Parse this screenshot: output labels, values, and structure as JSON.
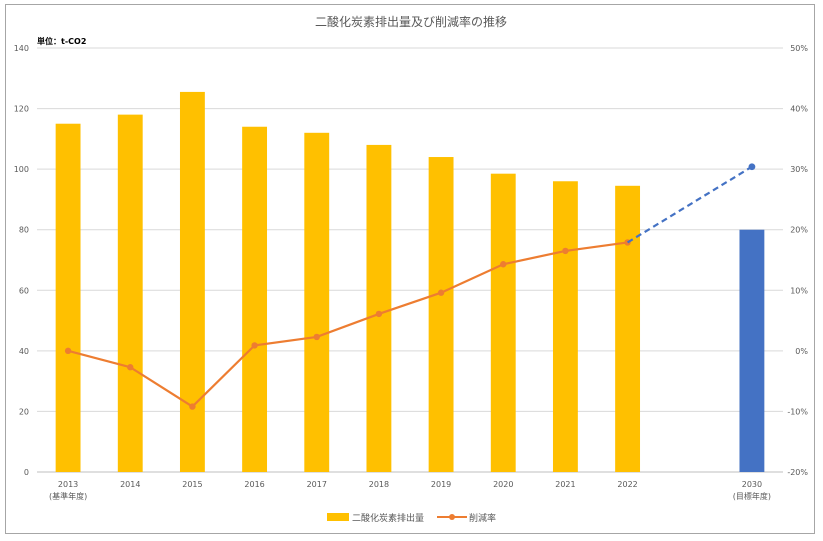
{
  "chart_data": {
    "type": "bar",
    "title": "二酸化炭素排出量及び削減率の推移",
    "unit_label": "単位：t-CO2",
    "categories": [
      "2013",
      "2014",
      "2015",
      "2016",
      "2017",
      "2018",
      "2019",
      "2020",
      "2021",
      "2022",
      "2030"
    ],
    "category_sublabels": {
      "2013": "(基準年度)",
      "2030": "(目標年度)"
    },
    "ylim": [
      0,
      140
    ],
    "yticks": [
      0,
      20,
      40,
      60,
      80,
      100,
      120,
      140
    ],
    "y2lim": [
      -20,
      50
    ],
    "y2ticks": [
      "-20%",
      "-10%",
      "0%",
      "10%",
      "20%",
      "30%",
      "40%",
      "50%"
    ],
    "grid": true,
    "legend_position": "bottom",
    "series": [
      {
        "name": "二酸化炭素排出量",
        "type": "bar",
        "axis": "left",
        "color": "#ffc000",
        "values": [
          115,
          118,
          125.5,
          114,
          112,
          108,
          104,
          98.5,
          96,
          94.5,
          80
        ],
        "point_colors": {
          "2030": "#4472c4"
        }
      },
      {
        "name": "削減率",
        "type": "line",
        "axis": "right",
        "unit": "%",
        "color": "#ed7d31",
        "values": [
          0,
          -2.7,
          -9.2,
          0.9,
          2.3,
          6.1,
          9.6,
          14.3,
          16.5,
          17.9,
          null
        ]
      },
      {
        "type": "line",
        "style": "dashed",
        "axis": "right",
        "color": "#4472c4",
        "x": [
          "2022",
          "2030"
        ],
        "values": [
          17.9,
          30.4
        ]
      }
    ]
  }
}
